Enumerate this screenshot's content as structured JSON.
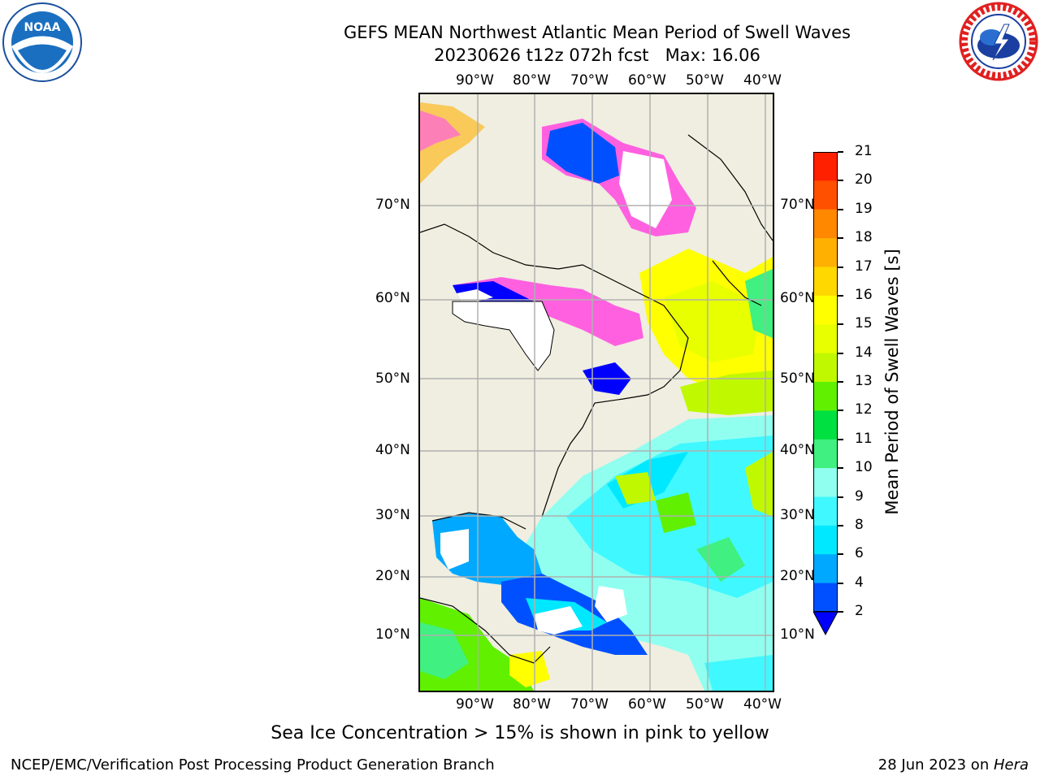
{
  "title": {
    "line1": "GEFS MEAN Northwest Atlantic Mean Period of Swell Waves",
    "line2": "20230626 t12z 072h fcst   Max: 16.06"
  },
  "axes": {
    "lon_labels": [
      "90°W",
      "80°W",
      "70°W",
      "60°W",
      "50°W",
      "40°W"
    ],
    "lat_labels": [
      "70°N",
      "60°N",
      "50°N",
      "40°N",
      "30°N",
      "20°N",
      "10°N"
    ]
  },
  "colorbar": {
    "label": "Mean Period of Swell Waves [s]",
    "ticks": [
      "2",
      "4",
      "6",
      "8",
      "9",
      "10",
      "11",
      "12",
      "13",
      "14",
      "15",
      "16",
      "17",
      "18",
      "19",
      "20",
      "21"
    ],
    "colors": [
      "#0050ff",
      "#00a8ff",
      "#00e8ff",
      "#40f8ff",
      "#90fff0",
      "#40f080",
      "#00e040",
      "#60f000",
      "#c0f800",
      "#e8ff00",
      "#ffff00",
      "#ffd800",
      "#ffb000",
      "#ff8800",
      "#ff5000",
      "#ff2000"
    ],
    "extend_color": "#0000ff"
  },
  "note": "Sea Ice Concentration > 15% is shown in pink to yellow",
  "footer": {
    "left": "NCEP/EMC/Verification Post Processing Product Generation Branch",
    "right_prefix": "28 Jun 2023 on ",
    "right_host": "Hera"
  },
  "colors": {
    "land": "#efeee0",
    "grid": "#b0b0b0",
    "ice_pink": "#ff60e0",
    "noaa_blue": "#1a6fc0",
    "nws_red": "#e02020"
  }
}
